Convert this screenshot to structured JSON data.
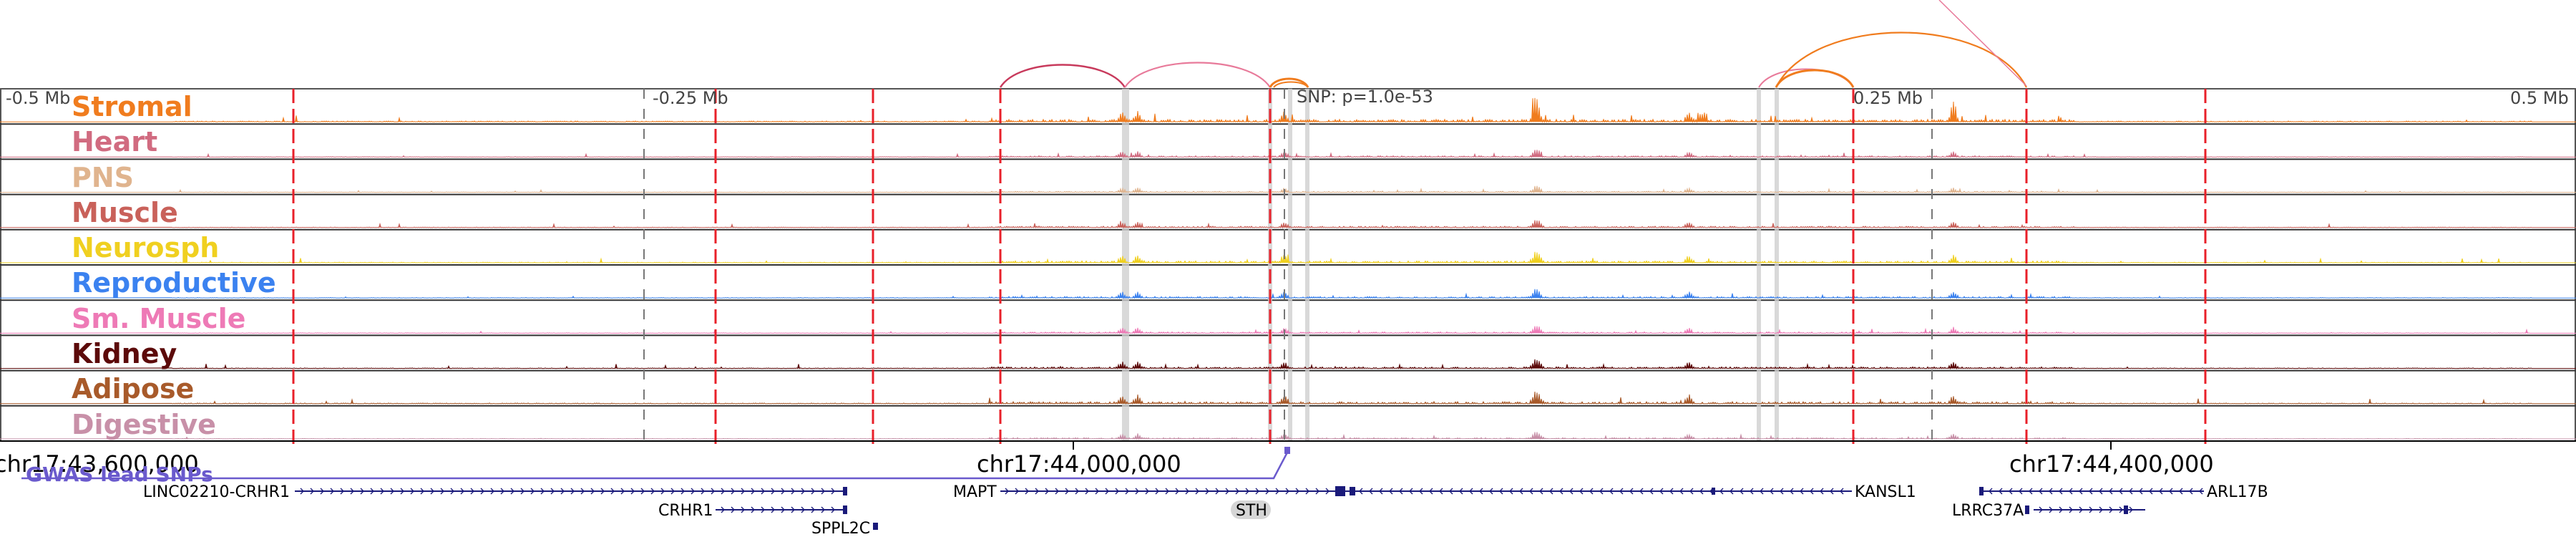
{
  "axis_labels": {
    "minus_half": "-0.5 Mb",
    "minus_quarter": "-0.25 Mb",
    "plus_quarter": "0.25 Mb",
    "plus_half": "0.5 Mb"
  },
  "snp_label": "SNP: p=1.0e-53",
  "coordinates": {
    "left": "chr17:43,600,000",
    "mid": "chr17:44,000,000",
    "right": "chr17:44,400,000"
  },
  "gwas_label": "GWAS lead SNPs",
  "tracks": [
    {
      "name": "Stromal",
      "color": "#f07c1e",
      "level": 1.0
    },
    {
      "name": "Heart",
      "color": "#d16b80",
      "level": 0.55
    },
    {
      "name": "PNS",
      "color": "#e0b48e",
      "level": 0.45
    },
    {
      "name": "Muscle",
      "color": "#c9615a",
      "level": 0.55
    },
    {
      "name": "Neurosph",
      "color": "#f0d020",
      "level": 0.75
    },
    {
      "name": "Reproductive",
      "color": "#3b82f0",
      "level": 0.6
    },
    {
      "name": "Sm. Muscle",
      "color": "#ee7ab6",
      "level": 0.55
    },
    {
      "name": "Kidney",
      "color": "#5c0a0a",
      "level": 0.65
    },
    {
      "name": "Adipose",
      "color": "#a85a2a",
      "level": 0.8
    },
    {
      "name": "Digestive",
      "color": "#c890a8",
      "level": 0.5
    }
  ],
  "genes": [
    {
      "name": "LINC02210-CRHR1",
      "strand": "+"
    },
    {
      "name": "CRHR1",
      "strand": "+"
    },
    {
      "name": "SPPL2C",
      "strand": "+"
    },
    {
      "name": "MAPT",
      "strand": "+"
    },
    {
      "name": "STH",
      "strand": "+"
    },
    {
      "name": "KANSL1",
      "strand": "-"
    },
    {
      "name": "LRRC37A",
      "strand": "+"
    },
    {
      "name": "ARL17B",
      "strand": "-"
    }
  ],
  "colors": {
    "marker_red": "#e8202a",
    "gwas_purple": "#6a5acd",
    "gene_navy": "#1a1a7a",
    "arc_crimson": "#c83a5c",
    "arc_pink": "#e87a9a",
    "arc_orange": "#f07c1e"
  }
}
